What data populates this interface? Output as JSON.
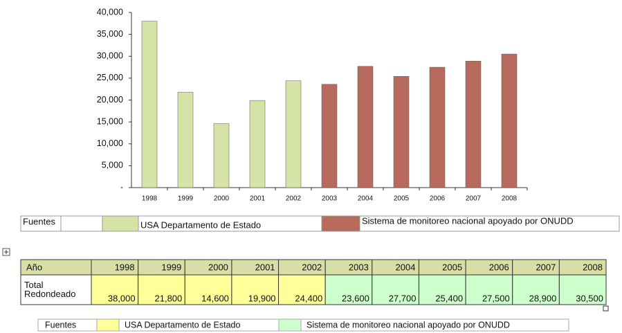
{
  "chart_data": {
    "type": "bar",
    "categories": [
      "1998",
      "1999",
      "2000",
      "2001",
      "2002",
      "2003",
      "2004",
      "2005",
      "2006",
      "2007",
      "2008"
    ],
    "series": [
      {
        "name": "USA Departamento de Estado",
        "color": "#d6e3a6",
        "values": [
          38000,
          21800,
          14600,
          19900,
          24400,
          null,
          null,
          null,
          null,
          null,
          null
        ]
      },
      {
        "name": "Sistema de monitoreo nacional apoyado por ONUDD",
        "color": "#b86a5c",
        "values": [
          null,
          null,
          null,
          null,
          null,
          23600,
          27700,
          25400,
          27500,
          28900,
          30500
        ]
      }
    ],
    "legend_title": "Fuentes",
    "ylim": [
      0,
      40000
    ],
    "yticks": [
      {
        "value": 0,
        "label": "-"
      },
      {
        "value": 5000,
        "label": "5,000"
      },
      {
        "value": 10000,
        "label": "10,000"
      },
      {
        "value": 15000,
        "label": "15,000"
      },
      {
        "value": 20000,
        "label": "20,000"
      },
      {
        "value": 25000,
        "label": "25,000"
      },
      {
        "value": 30000,
        "label": "30,000"
      },
      {
        "value": 35000,
        "label": "35,000"
      },
      {
        "value": 40000,
        "label": "40,000"
      }
    ],
    "grid": false
  },
  "table": {
    "header_color": "#d8dea6",
    "header": [
      "Año",
      "1998",
      "1999",
      "2000",
      "2001",
      "2002",
      "2003",
      "2004",
      "2005",
      "2006",
      "2007",
      "2008"
    ],
    "rows": [
      [
        "Total Redondeado",
        "38,000",
        "21,800",
        "14,600",
        "19,900",
        "24,400",
        "23,600",
        "27,700",
        "25,400",
        "27,500",
        "28,900",
        "30,500"
      ]
    ],
    "legend": {
      "title": "Fuentes",
      "items": [
        {
          "label": "USA Departamento de Estado",
          "color": "#ffff99"
        },
        {
          "label": "Sistema de monitoreo nacional apoyado por ONUDD",
          "color": "#ccffcc"
        }
      ]
    }
  }
}
